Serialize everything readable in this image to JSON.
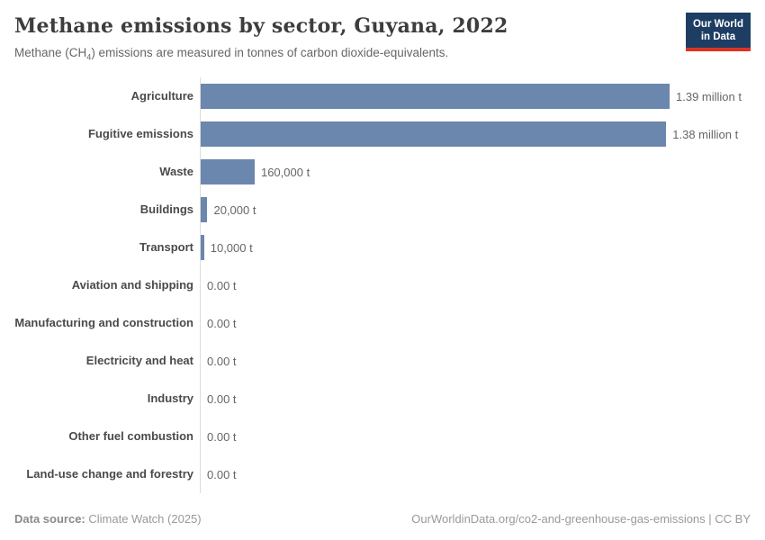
{
  "header": {
    "title": "Methane emissions by sector, Guyana, 2022",
    "subtitle_prefix": "Methane (CH",
    "subtitle_sub": "4",
    "subtitle_suffix": ") emissions are measured in tonnes of carbon dioxide-equivalents.",
    "logo_line1": "Our World",
    "logo_line2": "in Data"
  },
  "chart_data": {
    "type": "bar",
    "orientation": "horizontal",
    "title": "Methane emissions by sector, Guyana, 2022",
    "unit": "tonnes of carbon dioxide-equivalents",
    "categories": [
      "Agriculture",
      "Fugitive emissions",
      "Waste",
      "Buildings",
      "Transport",
      "Aviation and shipping",
      "Manufacturing and construction",
      "Electricity and heat",
      "Industry",
      "Other fuel combustion",
      "Land-use change and forestry"
    ],
    "values": [
      1390000,
      1380000,
      160000,
      20000,
      10000,
      0,
      0,
      0,
      0,
      0,
      0
    ],
    "value_labels": [
      "1.39 million t",
      "1.38 million t",
      "160,000 t",
      "20,000 t",
      "10,000 t",
      "0.00 t",
      "0.00 t",
      "0.00 t",
      "0.00 t",
      "0.00 t",
      "0.00 t"
    ],
    "xlim": [
      0,
      1390000
    ],
    "bar_color": "#6c87ad",
    "grid": false,
    "legend": "none"
  },
  "footer": {
    "source_label": "Data source:",
    "source_value": "Climate Watch (2025)",
    "credit": "OurWorldinData.org/co2-and-greenhouse-gas-emissions | CC BY"
  },
  "colors": {
    "bar": "#6c87ad",
    "logo_navy": "#1d3d63",
    "logo_red": "#dc3325",
    "title_text": "#3d3d3d",
    "subtitle_text": "#666666",
    "axis_line": "#dcdcdc"
  }
}
